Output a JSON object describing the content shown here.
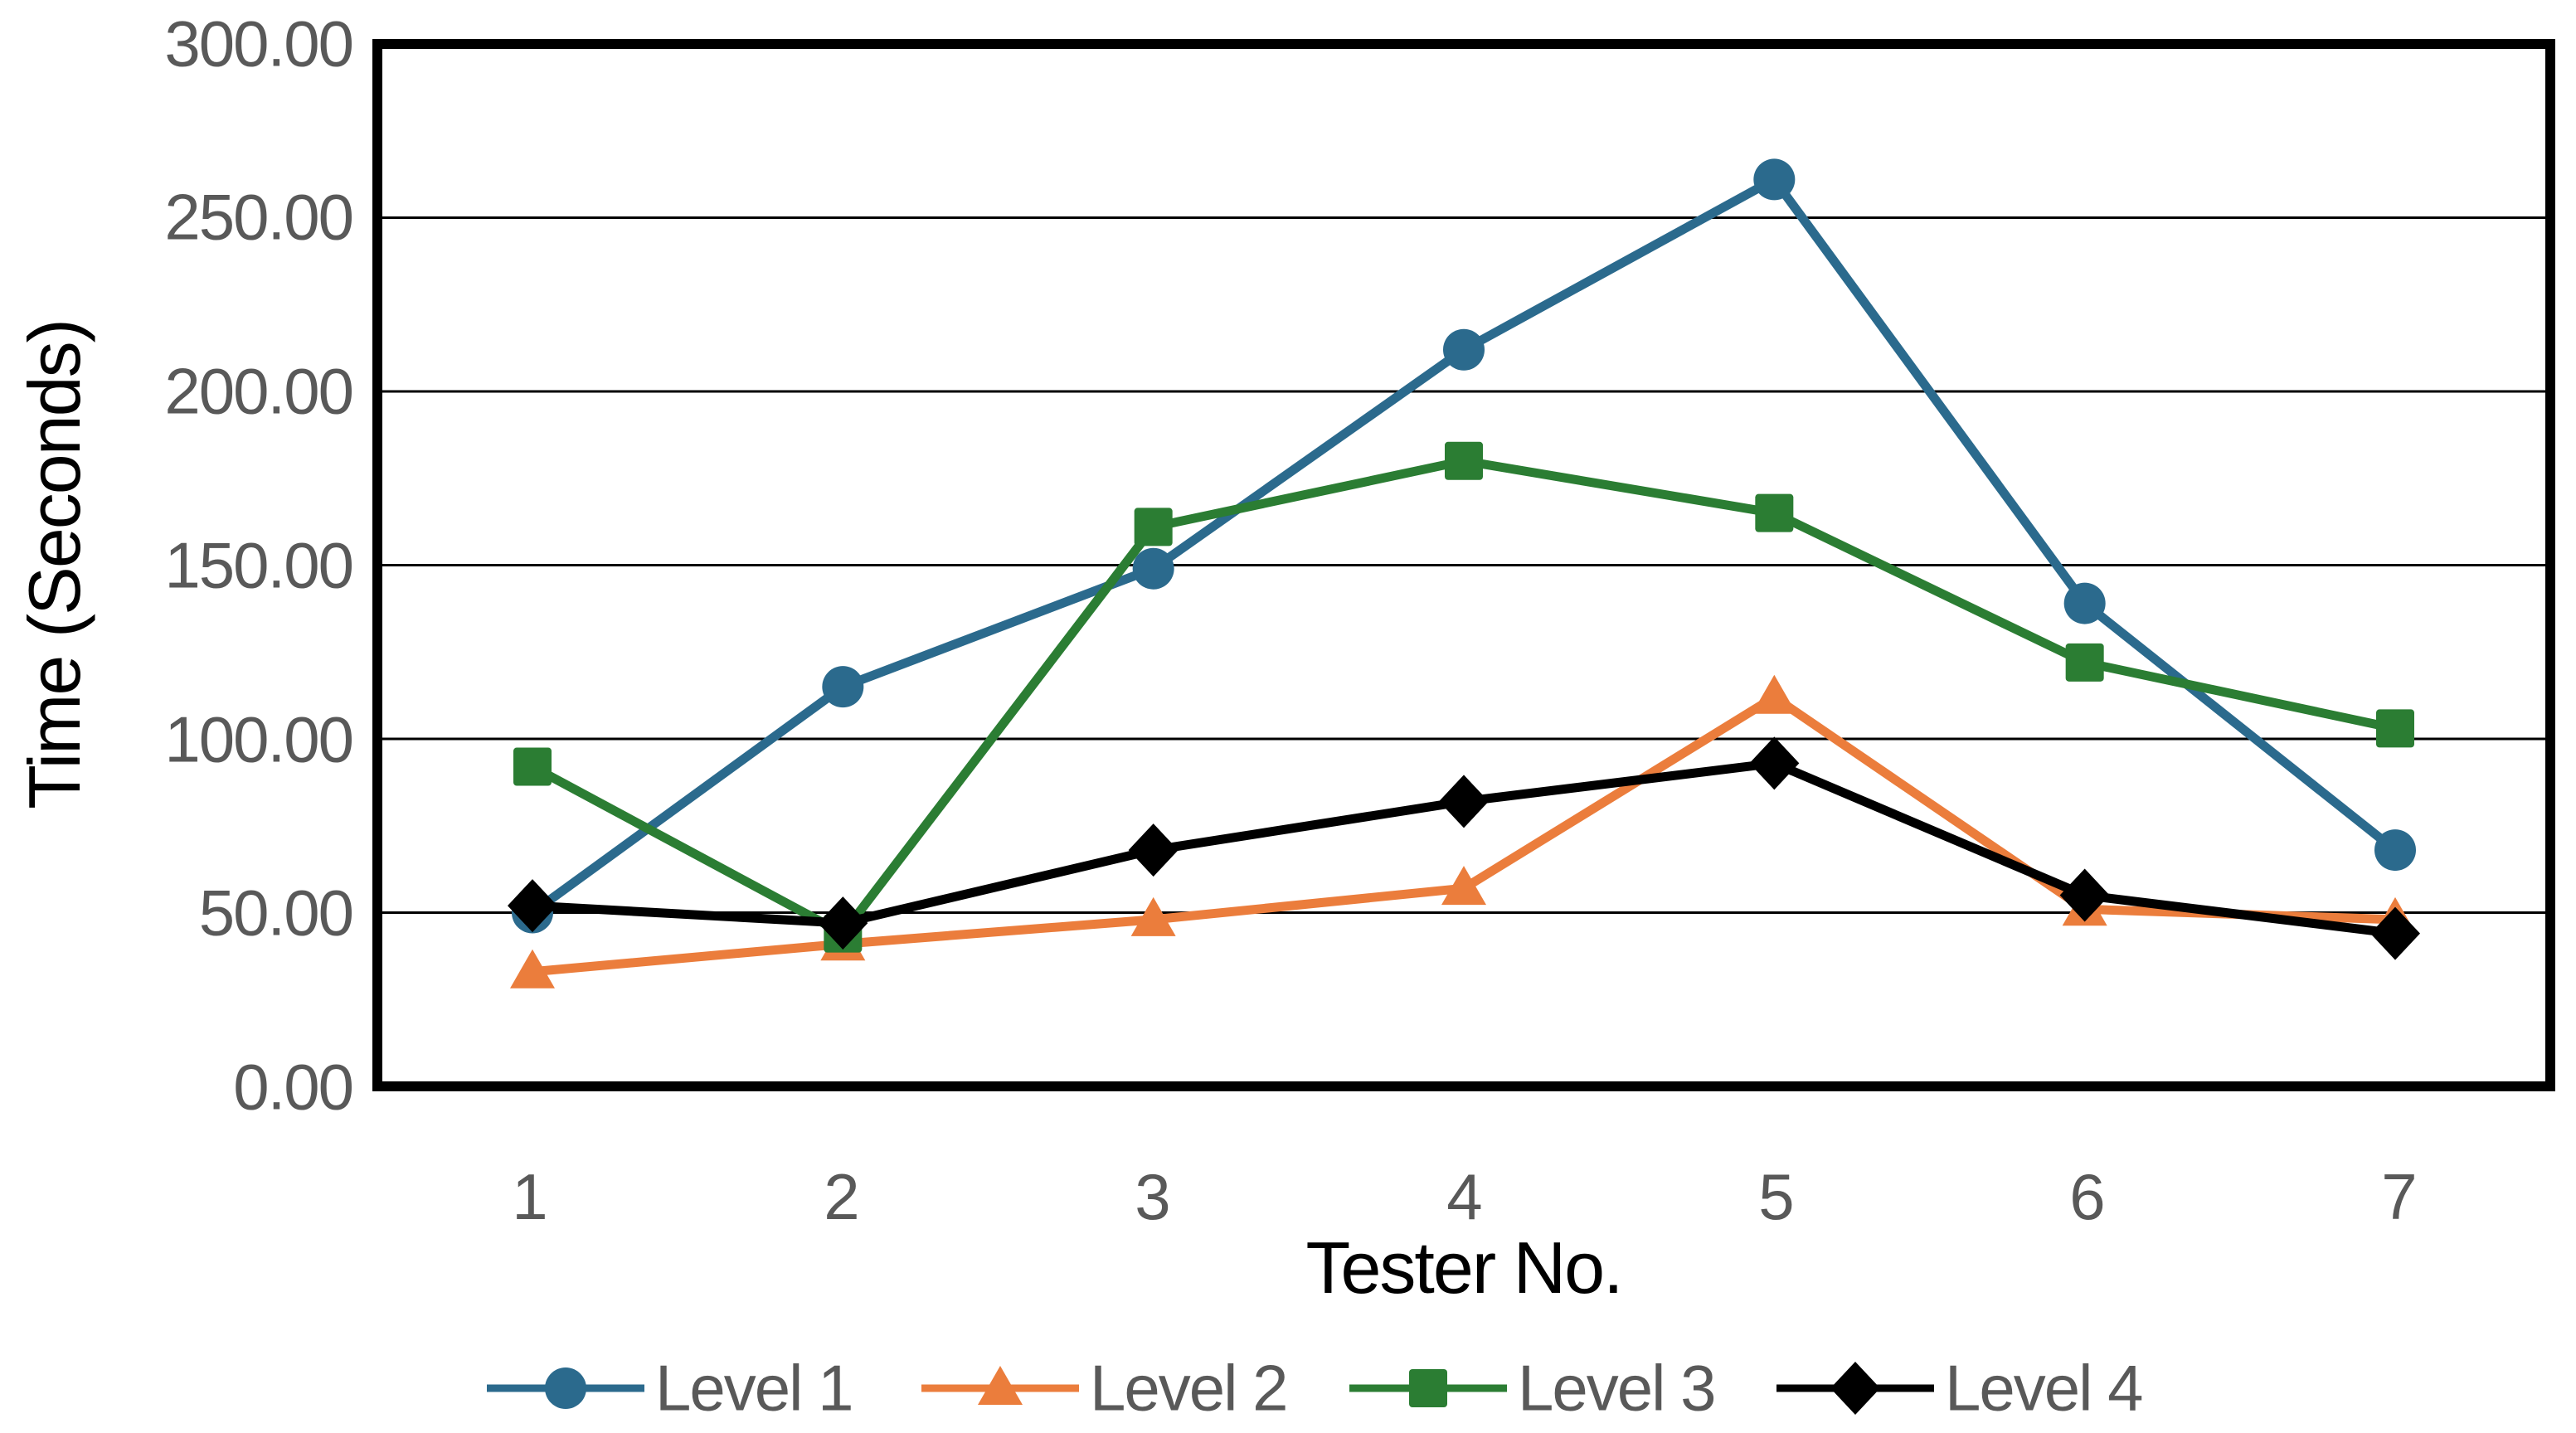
{
  "chart_data": {
    "type": "line",
    "title": "",
    "xlabel": "Tester No.",
    "ylabel": "Time (Seconds)",
    "categories": [
      "1",
      "2",
      "3",
      "4",
      "5",
      "6",
      "7"
    ],
    "y_ticks": [
      "300.00",
      "250.00",
      "200.00",
      "150.00",
      "100.00",
      "50.00",
      "0.00"
    ],
    "ylim": [
      0,
      300
    ],
    "y_tick_step": 50,
    "grid": "horizontal",
    "legend_position": "bottom",
    "frame_color": "#000000",
    "grid_color": "#000000",
    "tick_label_color": "#595959",
    "axis_title_color": "#000000",
    "series": [
      {
        "name": "Level 1",
        "marker": "circle",
        "color": "#2B6A8D",
        "values": [
          50,
          115,
          149,
          212,
          261,
          139,
          68
        ]
      },
      {
        "name": "Level 2",
        "marker": "triangle",
        "color": "#EB7D3C",
        "values": [
          33,
          41,
          48,
          57,
          112,
          51,
          48
        ]
      },
      {
        "name": "Level 3",
        "marker": "square",
        "color": "#2B7D33",
        "values": [
          92,
          44,
          161,
          180,
          165,
          122,
          103
        ]
      },
      {
        "name": "Level 4",
        "marker": "diamond",
        "color": "#000000",
        "values": [
          52,
          47,
          68,
          82,
          93,
          55,
          44
        ]
      }
    ]
  }
}
